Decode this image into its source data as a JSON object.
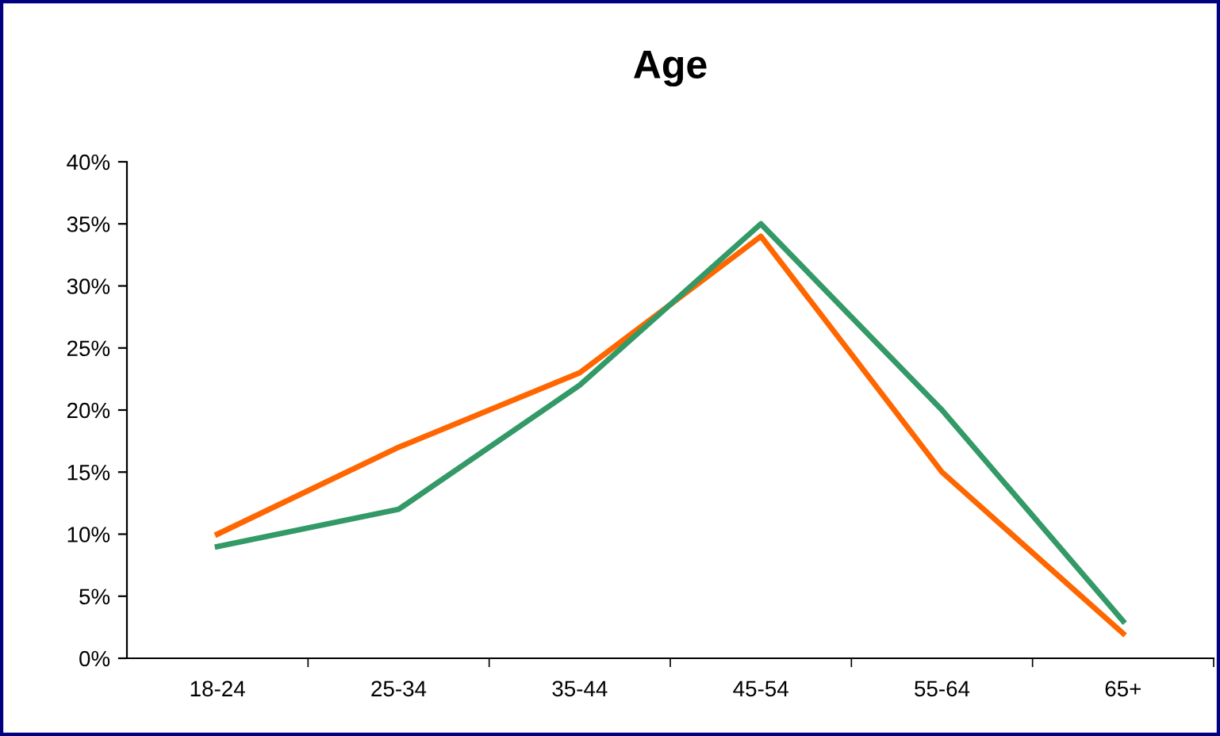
{
  "chart_data": {
    "type": "line",
    "title": "Age",
    "categories": [
      "18-24",
      "25-34",
      "35-44",
      "45-54",
      "55-64",
      "65+"
    ],
    "series": [
      {
        "color": "#ff6600",
        "values": [
          10,
          17,
          23,
          34,
          15,
          2
        ]
      },
      {
        "color": "#339966",
        "values": [
          9,
          12,
          22,
          35,
          20,
          3
        ]
      }
    ],
    "ylim": [
      0,
      40
    ],
    "yticks": [
      {
        "value": 0,
        "label": "0%"
      },
      {
        "value": 5,
        "label": "5%"
      },
      {
        "value": 10,
        "label": "10%"
      },
      {
        "value": 15,
        "label": "15%"
      },
      {
        "value": 20,
        "label": "20%"
      },
      {
        "value": 25,
        "label": "25%"
      },
      {
        "value": 30,
        "label": "30%"
      },
      {
        "value": 35,
        "label": "35%"
      },
      {
        "value": 40,
        "label": "40%"
      }
    ],
    "grid": false,
    "marker": "none",
    "line_style": "solid"
  }
}
